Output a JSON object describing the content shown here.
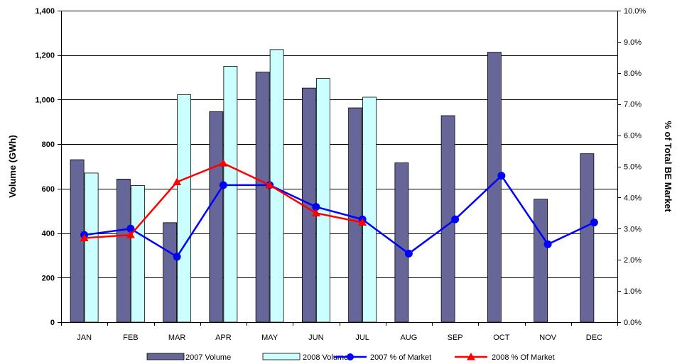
{
  "chart_data": {
    "type": "bar",
    "categories": [
      "JAN",
      "FEB",
      "MAR",
      "APR",
      "MAY",
      "JUN",
      "JUL",
      "AUG",
      "SEP",
      "OCT",
      "NOV",
      "DEC"
    ],
    "series": [
      {
        "name": "2007 Volume",
        "kind": "bar",
        "axis": "left",
        "color": "#666699",
        "values": [
          730,
          643,
          447,
          946,
          1124,
          1052,
          963,
          716,
          928,
          1213,
          553,
          757
        ]
      },
      {
        "name": "2008 Volume",
        "kind": "bar",
        "axis": "left",
        "color": "#ccffff",
        "values": [
          670,
          614,
          1022,
          1150,
          1225,
          1095,
          1011,
          null,
          null,
          null,
          null,
          null
        ]
      },
      {
        "name": "2007 % of Market",
        "kind": "line",
        "axis": "right",
        "color": "#0000ff",
        "marker": "circle",
        "values": [
          2.8,
          3.0,
          2.1,
          4.4,
          4.4,
          3.7,
          3.3,
          2.2,
          3.3,
          4.7,
          2.5,
          3.2
        ]
      },
      {
        "name": "2008 % Of Market",
        "kind": "line",
        "axis": "right",
        "color": "#ff0000",
        "marker": "triangle",
        "values": [
          2.7,
          2.8,
          4.5,
          5.1,
          4.4,
          3.5,
          3.2,
          null,
          null,
          null,
          null,
          null
        ]
      }
    ],
    "ylabel": "Volume (GWh)",
    "y2label": "% of Total BE Market",
    "ylim": [
      0,
      1400
    ],
    "y2lim": [
      0,
      10
    ],
    "yticks": [
      "0",
      "200",
      "400",
      "600",
      "800",
      "1,000",
      "1,200",
      "1,400"
    ],
    "y2ticks": [
      "0.0%",
      "1.0%",
      "2.0%",
      "3.0%",
      "4.0%",
      "5.0%",
      "6.0%",
      "7.0%",
      "8.0%",
      "9.0%",
      "10.0%"
    ],
    "grid": true,
    "legend_position": "bottom"
  }
}
